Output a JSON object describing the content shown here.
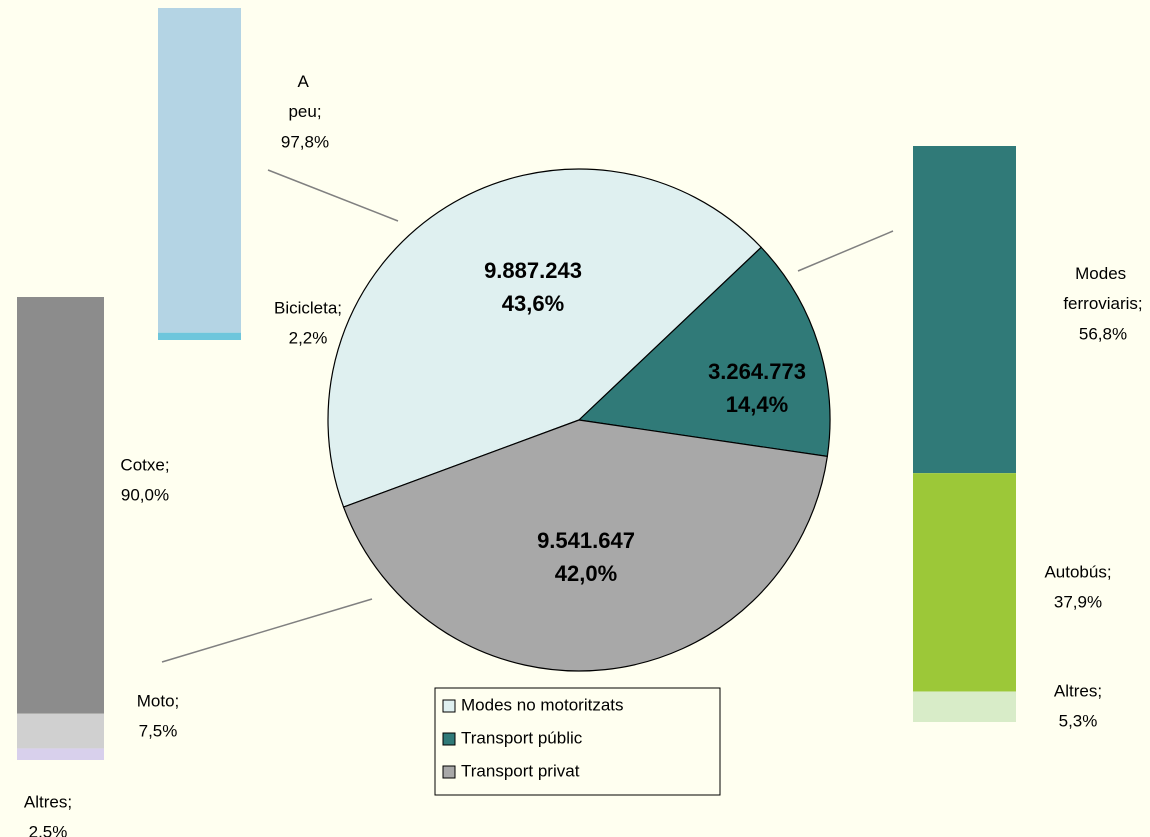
{
  "chart_data": {
    "type": "pie",
    "categories": [
      "Modes no motoritzats",
      "Transport públic",
      "Transport privat"
    ],
    "colors": [
      "#dff0f0",
      "#307a78",
      "#a8a8a8"
    ],
    "values": [
      9887243,
      3264773,
      9541647
    ],
    "value_labels": [
      "9.887.243",
      "3.264.773",
      "9.541.647"
    ],
    "percents": [
      43.6,
      14.4,
      42.0
    ],
    "percent_labels": [
      "43,6%",
      "14,4%",
      "42,0%"
    ],
    "legend": true,
    "breakdowns": [
      {
        "segments": [
          {
            "name": "A peu;",
            "value": 97.8,
            "label": "97,8%",
            "color": "#b4d4e4"
          },
          {
            "name": "Bicicleta;",
            "value": 2.2,
            "label": "2,2%",
            "color": "#6ec6dc"
          }
        ]
      },
      {
        "segments": [
          {
            "name": "Cotxe;",
            "value": 90.0,
            "label": "90,0%",
            "color": "#8c8c8c"
          },
          {
            "name": "Moto;",
            "value": 7.5,
            "label": "7,5%",
            "color": "#d0d0d0"
          },
          {
            "name": "Altres;",
            "value": 2.5,
            "label": "2,5%",
            "color": "#d8d0ec"
          }
        ]
      },
      {
        "segments": [
          {
            "name": "Modes ferroviaris;",
            "value": 56.8,
            "label": "56,8%",
            "color": "#307a78"
          },
          {
            "name": "Autobús;",
            "value": 37.9,
            "label": "37,9%",
            "color": "#9cc838"
          },
          {
            "name": "Altres;",
            "value": 5.3,
            "label": "5,3%",
            "color": "#d8ecc8"
          }
        ]
      }
    ]
  }
}
